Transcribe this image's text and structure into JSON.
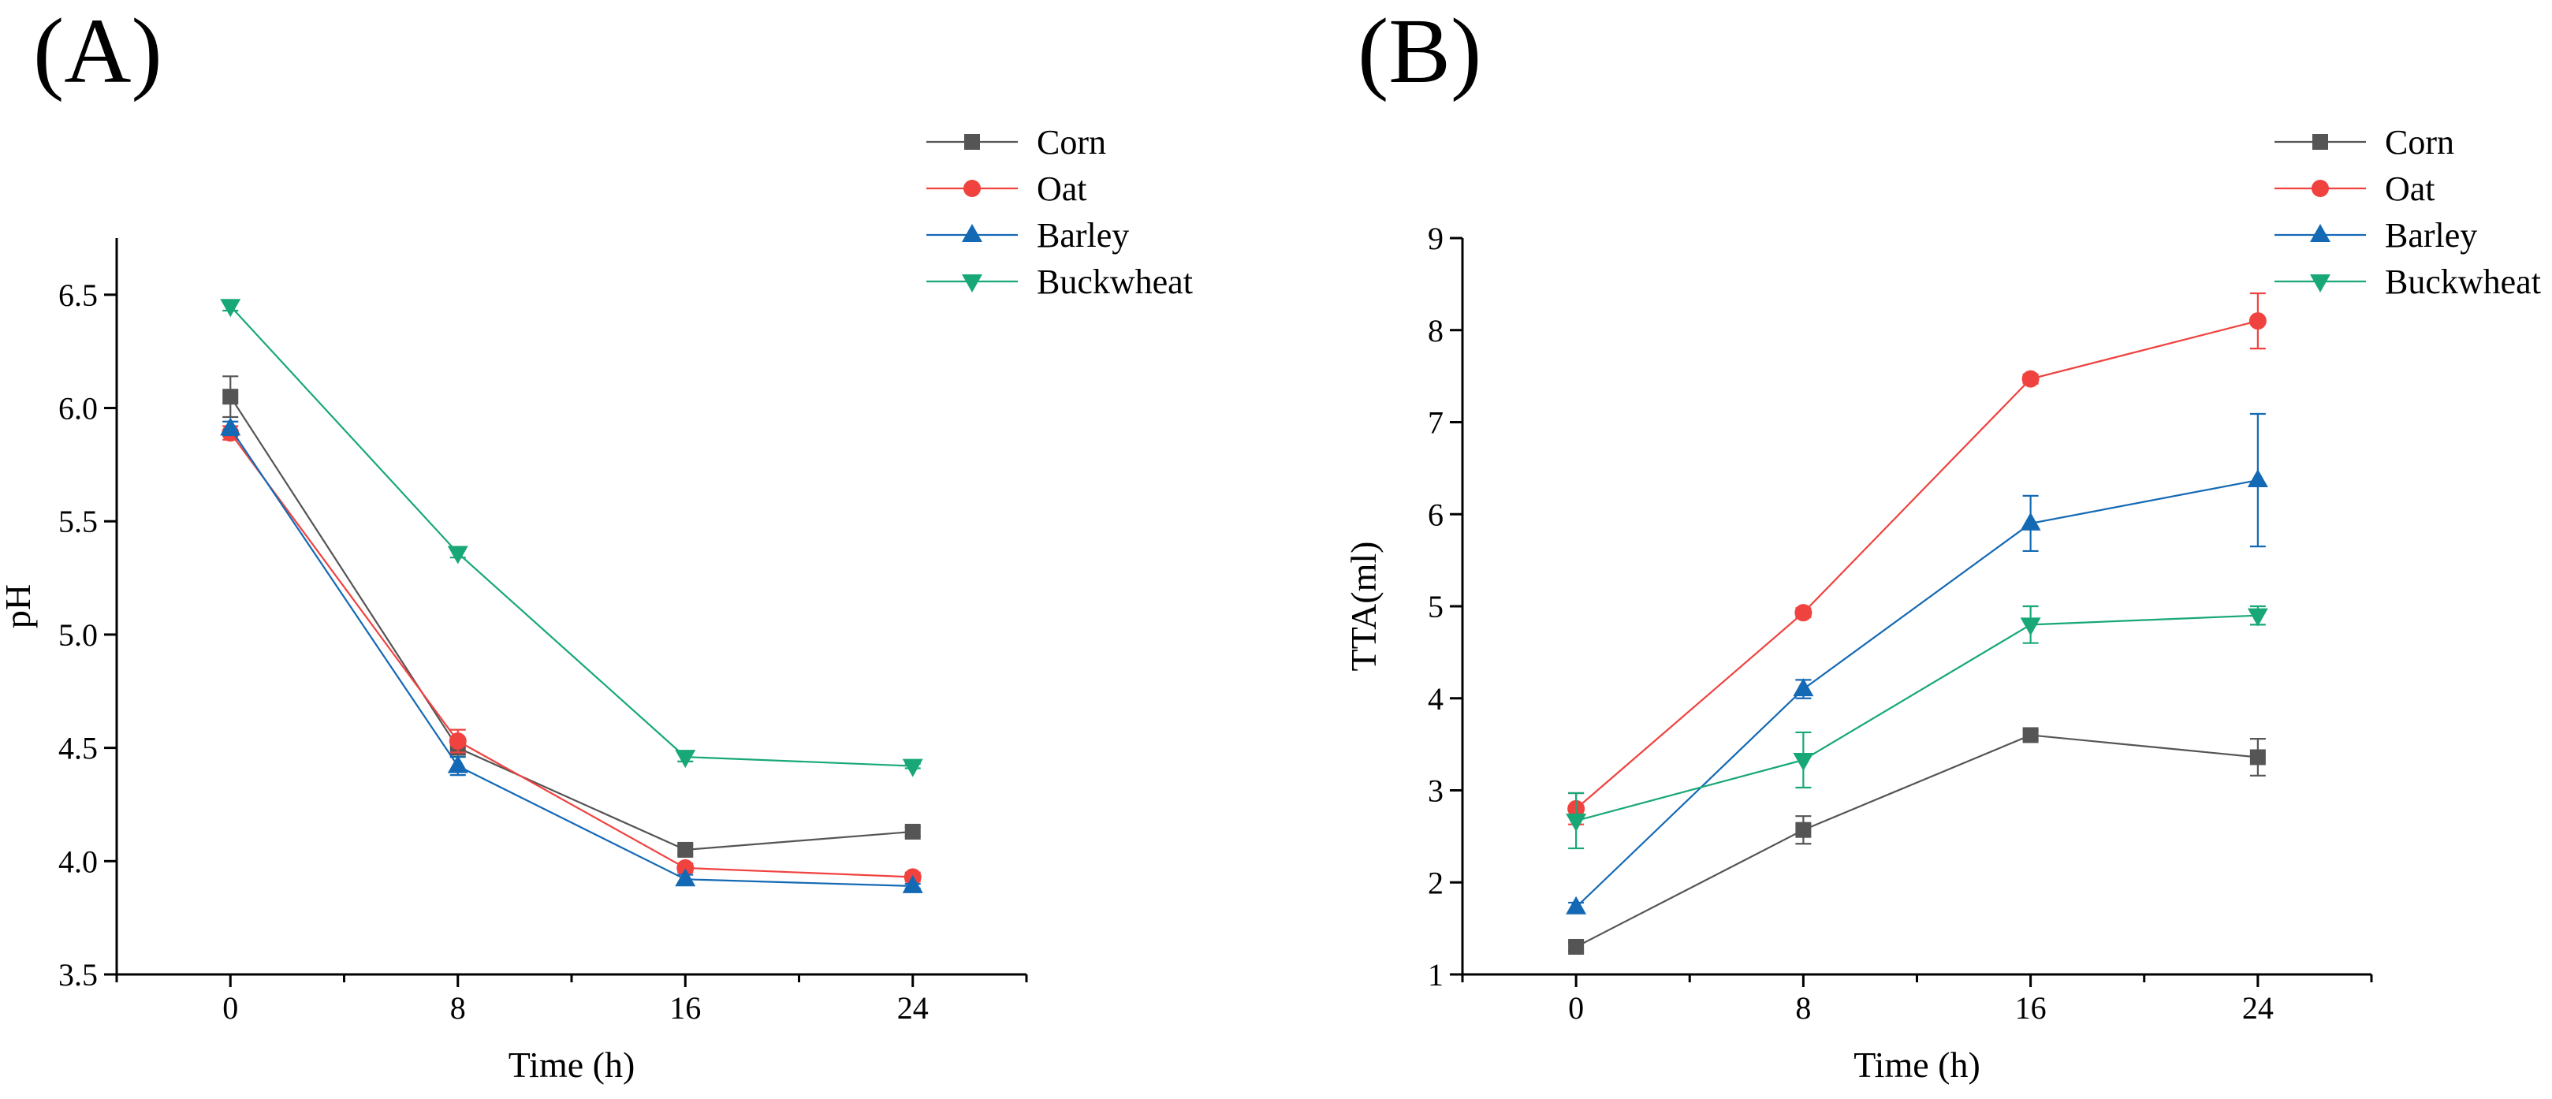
{
  "chart_data": [
    {
      "panel": "(A)",
      "type": "line",
      "xlabel": "Time (h)",
      "ylabel": "pH",
      "x": [
        0,
        8,
        16,
        24
      ],
      "xlim": [
        -4,
        28
      ],
      "xticks": [
        0,
        8,
        16,
        24
      ],
      "xminor": [
        -4,
        4,
        12,
        20,
        28
      ],
      "ylim": [
        3.5,
        6.75
      ],
      "yticks": [
        3.5,
        4.0,
        4.5,
        5.0,
        5.5,
        6.0,
        6.5
      ],
      "ytick_labels": [
        "3.5",
        "4.0",
        "4.5",
        "5.0",
        "5.5",
        "6.0",
        "6.5"
      ],
      "legend_position": "top-right",
      "series": [
        {
          "name": "Corn",
          "color": "#555555",
          "marker": "square",
          "values": [
            6.05,
            4.5,
            4.05,
            4.13
          ],
          "errors": [
            0.09,
            0.03,
            0.02,
            0.02
          ]
        },
        {
          "name": "Oat",
          "color": "#f0423f",
          "marker": "circle",
          "values": [
            5.89,
            4.53,
            3.97,
            3.93
          ],
          "errors": [
            0.03,
            0.05,
            0.02,
            0.02
          ]
        },
        {
          "name": "Barley",
          "color": "#1469b4",
          "marker": "triangle-up",
          "values": [
            5.91,
            4.42,
            3.92,
            3.89
          ],
          "errors": [
            0.03,
            0.04,
            0.02,
            0.01
          ]
        },
        {
          "name": "Buckwheat",
          "color": "#18a878",
          "marker": "triangle-down",
          "values": [
            6.45,
            5.36,
            4.46,
            4.42
          ],
          "errors": [
            0.02,
            0.02,
            0.02,
            0.01
          ]
        }
      ]
    },
    {
      "panel": "(B)",
      "type": "line",
      "xlabel": "Time (h)",
      "ylabel": "TTA(ml)",
      "x": [
        0,
        8,
        16,
        24
      ],
      "xlim": [
        -4,
        28
      ],
      "xticks": [
        0,
        8,
        16,
        24
      ],
      "xminor": [
        -4,
        4,
        12,
        20,
        28
      ],
      "ylim": [
        1,
        9
      ],
      "yticks": [
        1,
        2,
        3,
        4,
        5,
        6,
        7,
        8,
        9
      ],
      "ytick_labels": [
        "1",
        "2",
        "3",
        "4",
        "5",
        "6",
        "7",
        "8",
        "9"
      ],
      "legend_position": "top-right",
      "series": [
        {
          "name": "Corn",
          "color": "#555555",
          "marker": "square",
          "values": [
            1.3,
            2.57,
            3.6,
            3.36
          ],
          "errors": [
            0.05,
            0.15,
            0.05,
            0.2
          ]
        },
        {
          "name": "Oat",
          "color": "#f0423f",
          "marker": "circle",
          "values": [
            2.8,
            4.93,
            7.47,
            8.1
          ],
          "errors": [
            0.17,
            0.05,
            0.05,
            0.3
          ]
        },
        {
          "name": "Barley",
          "color": "#1469b4",
          "marker": "triangle-up",
          "values": [
            1.73,
            4.1,
            5.9,
            6.37
          ],
          "errors": [
            0.05,
            0.1,
            0.3,
            0.72
          ]
        },
        {
          "name": "Buckwheat",
          "color": "#18a878",
          "marker": "triangle-down",
          "values": [
            2.67,
            3.33,
            4.8,
            4.9
          ],
          "errors": [
            0.3,
            0.3,
            0.2,
            0.1
          ]
        }
      ]
    }
  ]
}
